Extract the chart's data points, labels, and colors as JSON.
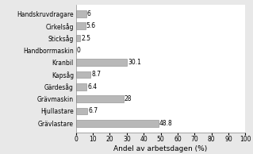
{
  "categories": [
    "Grävlastare",
    "Hjullastare",
    "Grävmaskin",
    "Gärdesåg",
    "Kapsåg",
    "Kranbil",
    "Handborrmaskin",
    "Sticksåg",
    "Cirkelsåg",
    "Handskruvdragare"
  ],
  "values": [
    48.8,
    6.7,
    28,
    6.4,
    8.7,
    30.1,
    0,
    2.5,
    5.6,
    6
  ],
  "labels": [
    "48.8",
    "6.7",
    "28",
    "6.4",
    "8.7",
    "30.1",
    "0",
    "2.5",
    "5.6",
    "6"
  ],
  "bar_color": "#b8b8b8",
  "bar_edge_color": "#888888",
  "xlabel": "Andel av arbetsdagen (%)",
  "xlim": [
    0,
    100
  ],
  "xticks": [
    0,
    10,
    20,
    30,
    40,
    50,
    60,
    70,
    80,
    90,
    100
  ],
  "background_color": "#e8e8e8",
  "plot_bg_color": "#ffffff",
  "label_fontsize": 5.5,
  "tick_fontsize": 5.5,
  "xlabel_fontsize": 6.5,
  "bar_height": 0.55
}
